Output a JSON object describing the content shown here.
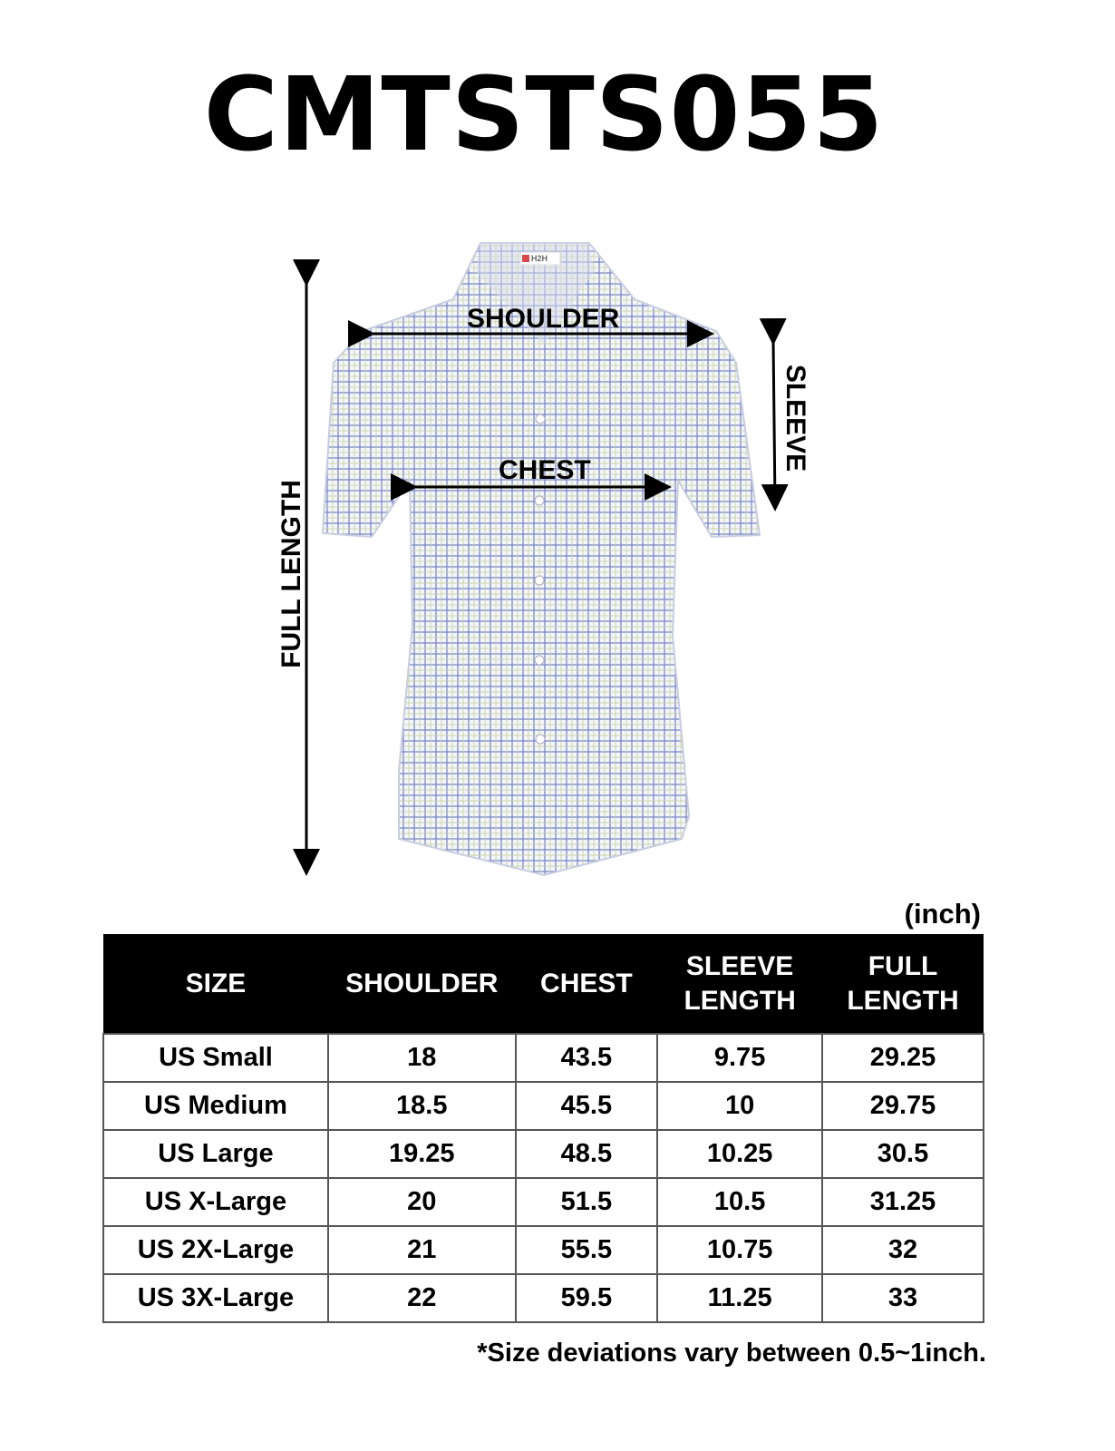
{
  "title": "CMTSTS055",
  "brand_label": "H2H",
  "diagram_labels": {
    "shoulder": "SHOULDER",
    "chest": "CHEST",
    "sleeve": "SLEEVE",
    "full_length": "FULL LENGTH"
  },
  "unit": "(inch)",
  "table": {
    "headers": [
      "SIZE",
      "SHOULDER",
      "CHEST",
      "SLEEVE LENGTH",
      "FULL LENGTH"
    ],
    "rows": [
      [
        "US Small",
        "18",
        "43.5",
        "9.75",
        "29.25"
      ],
      [
        "US Medium",
        "18.5",
        "45.5",
        "10",
        "29.75"
      ],
      [
        "US Large",
        "19.25",
        "48.5",
        "10.25",
        "30.5"
      ],
      [
        "US X-Large",
        "20",
        "51.5",
        "10.5",
        "31.25"
      ],
      [
        "US 2X-Large",
        "21",
        "55.5",
        "10.75",
        "32"
      ],
      [
        "US 3X-Large",
        "22",
        "59.5",
        "11.25",
        "33"
      ]
    ]
  },
  "note": "*Size deviations vary between 0.5~1inch.",
  "colors": {
    "check_blue": "#6f7fc2",
    "check_green": "#b9c98a",
    "header_bg": "#000000"
  }
}
